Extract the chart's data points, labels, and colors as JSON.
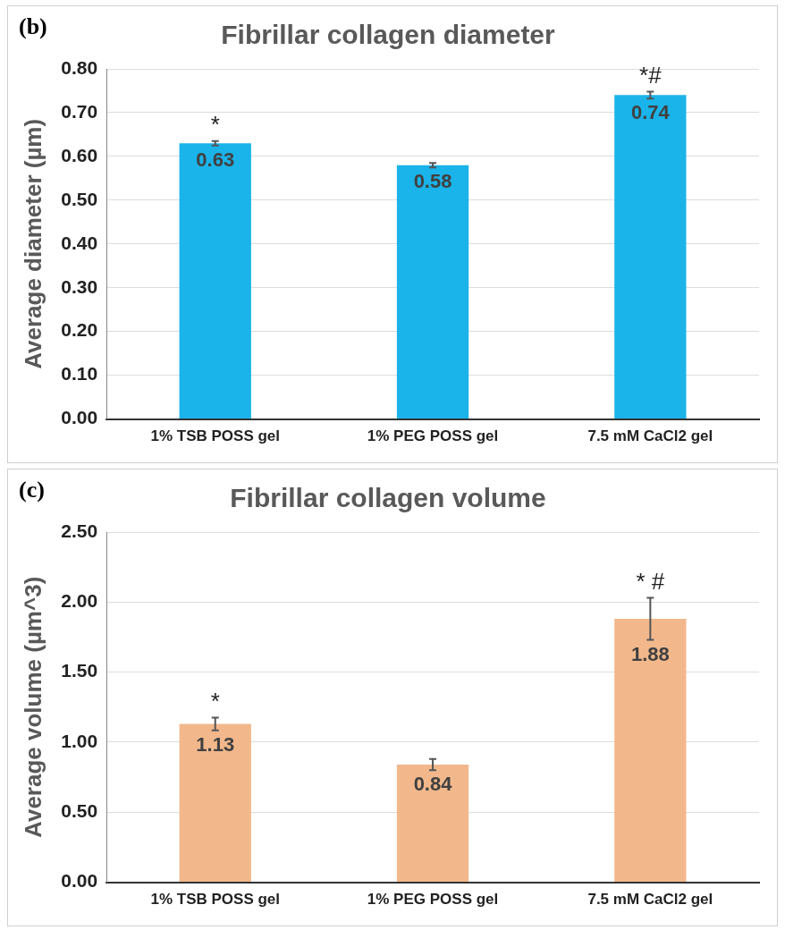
{
  "chart_data": [
    {
      "type": "bar",
      "title": "Fibrillar collagen diameter",
      "ylabel": "Average diameter (µm)",
      "categories": [
        "1% TSB POSS gel",
        "1% PEG POSS gel",
        "7.5 mM CaCl2 gel"
      ],
      "values": [
        0.63,
        0.58,
        0.74
      ],
      "errors": [
        0.005,
        0.005,
        0.008
      ],
      "color": "#1ab3ea",
      "data_labels": true,
      "ylim": [
        0,
        0.8
      ],
      "yticks": [
        {
          "value": 0,
          "label": "0.00"
        },
        {
          "value": 0.1,
          "label": "0.10"
        },
        {
          "value": 0.2,
          "label": "0.20"
        },
        {
          "value": 0.3,
          "label": "0.30"
        },
        {
          "value": 0.4,
          "label": "0.40"
        },
        {
          "value": 0.5,
          "label": "0.50"
        },
        {
          "value": 0.6,
          "label": "0.60"
        },
        {
          "value": 0.7,
          "label": "0.70"
        },
        {
          "value": 0.8,
          "label": "0.80"
        }
      ],
      "grid": "y",
      "legend": false,
      "annotations": [
        "(b)",
        {
          "text": "*",
          "x": "1% TSB POSS gel",
          "y": 0.635
        },
        {
          "text": "*#",
          "x": "7.5 mM CaCl2 gel",
          "y": 0.748
        }
      ]
    },
    {
      "type": "bar",
      "title": "Fibrillar collagen volume",
      "ylabel": "Average volume (µm^3)",
      "categories": [
        "1% TSB POSS gel",
        "1% PEG POSS gel",
        "7.5 mM CaCl2 gel"
      ],
      "values": [
        1.13,
        0.84,
        1.88
      ],
      "errors": [
        0.045,
        0.04,
        0.15
      ],
      "color": "#f2b88c",
      "data_labels": true,
      "ylim": [
        0,
        2.5
      ],
      "yticks": [
        {
          "value": 0,
          "label": "0.00"
        },
        {
          "value": 0.5,
          "label": "0.50"
        },
        {
          "value": 1,
          "label": "1.00"
        },
        {
          "value": 1.5,
          "label": "1.50"
        },
        {
          "value": 2,
          "label": "2.00"
        },
        {
          "value": 2.5,
          "label": "2.50"
        }
      ],
      "grid": "y",
      "legend": false,
      "annotations": [
        "(c)",
        {
          "text": "*",
          "x": "1% TSB POSS gel",
          "y": 1.175
        },
        {
          "text": "* #",
          "x": "7.5 mM CaCl2 gel",
          "y": 2.03
        }
      ]
    }
  ]
}
